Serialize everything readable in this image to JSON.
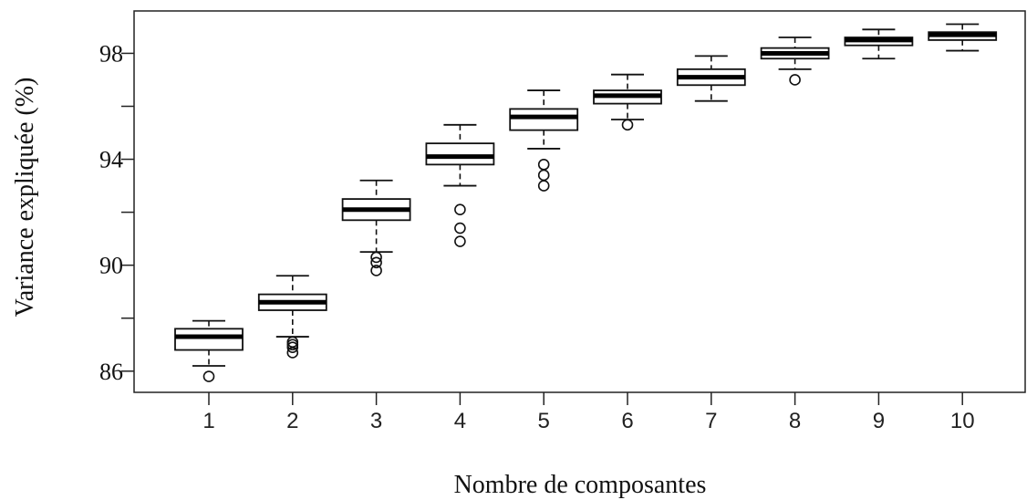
{
  "chart_data": {
    "type": "boxplot",
    "xlabel": "Nombre de composantes",
    "ylabel": "Variance expliquée (%)",
    "categories": [
      "1",
      "2",
      "3",
      "4",
      "5",
      "6",
      "7",
      "8",
      "9",
      "10"
    ],
    "yticks": [
      86,
      90,
      94,
      98
    ],
    "ylim": [
      85.2,
      99.6
    ],
    "grid": false,
    "boxes": [
      {
        "category": "1",
        "whisker_low": 86.2,
        "q1": 86.8,
        "median": 87.3,
        "q3": 87.6,
        "whisker_high": 87.9,
        "outliers": [
          85.8
        ]
      },
      {
        "category": "2",
        "whisker_low": 87.3,
        "q1": 88.3,
        "median": 88.6,
        "q3": 88.9,
        "whisker_high": 89.6,
        "outliers": [
          87.1,
          87.0,
          86.9,
          86.7
        ]
      },
      {
        "category": "3",
        "whisker_low": 90.5,
        "q1": 91.7,
        "median": 92.1,
        "q3": 92.5,
        "whisker_high": 93.2,
        "outliers": [
          90.3,
          90.1,
          89.8
        ]
      },
      {
        "category": "4",
        "whisker_low": 93.0,
        "q1": 93.8,
        "median": 94.1,
        "q3": 94.6,
        "whisker_high": 95.3,
        "outliers": [
          92.1,
          91.4,
          90.9
        ]
      },
      {
        "category": "5",
        "whisker_low": 94.4,
        "q1": 95.1,
        "median": 95.6,
        "q3": 95.9,
        "whisker_high": 96.6,
        "outliers": [
          93.8,
          93.4,
          93.0
        ]
      },
      {
        "category": "6",
        "whisker_low": 95.5,
        "q1": 96.1,
        "median": 96.4,
        "q3": 96.6,
        "whisker_high": 97.2,
        "outliers": [
          95.3
        ]
      },
      {
        "category": "7",
        "whisker_low": 96.2,
        "q1": 96.8,
        "median": 97.1,
        "q3": 97.4,
        "whisker_high": 97.9,
        "outliers": []
      },
      {
        "category": "8",
        "whisker_low": 97.4,
        "q1": 97.8,
        "median": 98.0,
        "q3": 98.2,
        "whisker_high": 98.6,
        "outliers": [
          97.0
        ]
      },
      {
        "category": "9",
        "whisker_low": 97.8,
        "q1": 98.3,
        "median": 98.5,
        "q3": 98.6,
        "whisker_high": 98.9,
        "outliers": []
      },
      {
        "category": "10",
        "whisker_low": 98.1,
        "q1": 98.5,
        "median": 98.7,
        "q3": 98.8,
        "whisker_high": 99.1,
        "outliers": []
      }
    ]
  }
}
